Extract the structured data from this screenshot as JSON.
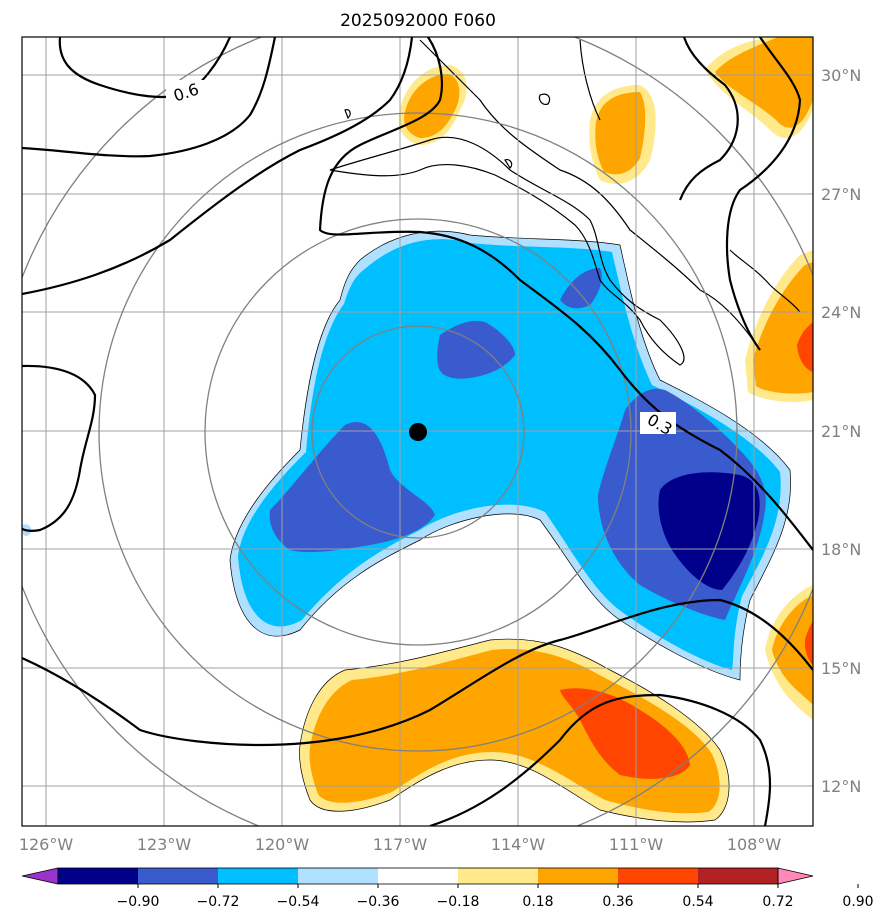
{
  "title": "2025092000 F060",
  "map": {
    "lon_ticks": [
      "126°W",
      "123°W",
      "120°W",
      "117°W",
      "114°W",
      "111°W",
      "108°W"
    ],
    "lat_ticks": [
      "30°N",
      "27°N",
      "24°N",
      "21°N",
      "18°N",
      "15°N",
      "12°N"
    ],
    "contour_labels": [
      "0.6",
      "0.3"
    ],
    "center_marker": "storm-center-dot",
    "range_rings": 4
  },
  "colorbar": {
    "ticks": [
      "−0.90",
      "−0.72",
      "−0.54",
      "−0.36",
      "−0.18",
      "0.18",
      "0.36",
      "0.54",
      "0.72",
      "0.90"
    ],
    "colors": [
      "#9933cc",
      "#00008b",
      "#3a5bcd",
      "#00bfff",
      "#b0e0ff",
      "#ffffff",
      "#ffe98a",
      "#ffa500",
      "#ff4500",
      "#b22222",
      "#ff88b8"
    ]
  },
  "colors": {
    "blue_light": "#00bfff",
    "blue_mid": "#3a5bcd",
    "blue_dark": "#00008b",
    "pale_blue": "#b0e0ff",
    "yellow": "#ffe98a",
    "orange": "#ffa500",
    "red": "#ff4500",
    "grid": "#a0a0a0",
    "rings": "#808080"
  }
}
